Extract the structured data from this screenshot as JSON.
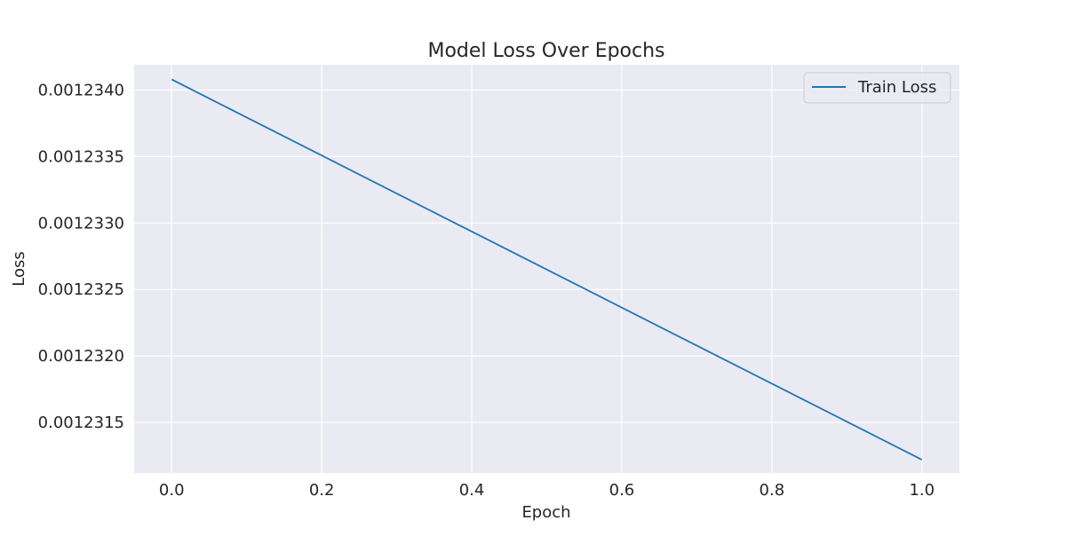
{
  "chart_data": {
    "type": "line",
    "title": "Model Loss Over Epochs",
    "xlabel": "Epoch",
    "ylabel": "Loss",
    "xlim": [
      -0.05,
      1.05
    ],
    "ylim": [
      0.00123112,
      0.00123419
    ],
    "x_ticks": [
      0.0,
      0.2,
      0.4,
      0.6,
      0.8,
      1.0
    ],
    "x_tick_labels": [
      "0.0",
      "0.2",
      "0.4",
      "0.6",
      "0.8",
      "1.0"
    ],
    "y_ticks": [
      0.0012315,
      0.001232,
      0.0012325,
      0.001233,
      0.0012335,
      0.001234
    ],
    "y_tick_labels": [
      "0.0012315",
      "0.0012320",
      "0.0012325",
      "0.0012330",
      "0.0012335",
      "0.0012340"
    ],
    "grid": true,
    "legend_position": "top-right",
    "colors": {
      "plot_background": "#eaeaf2",
      "grid": "#ffffff",
      "series": "#1f77b4"
    },
    "series": [
      {
        "name": "Train Loss",
        "x": [
          0.0,
          1.0
        ],
        "y": [
          0.00123408,
          0.00123122
        ]
      }
    ]
  }
}
